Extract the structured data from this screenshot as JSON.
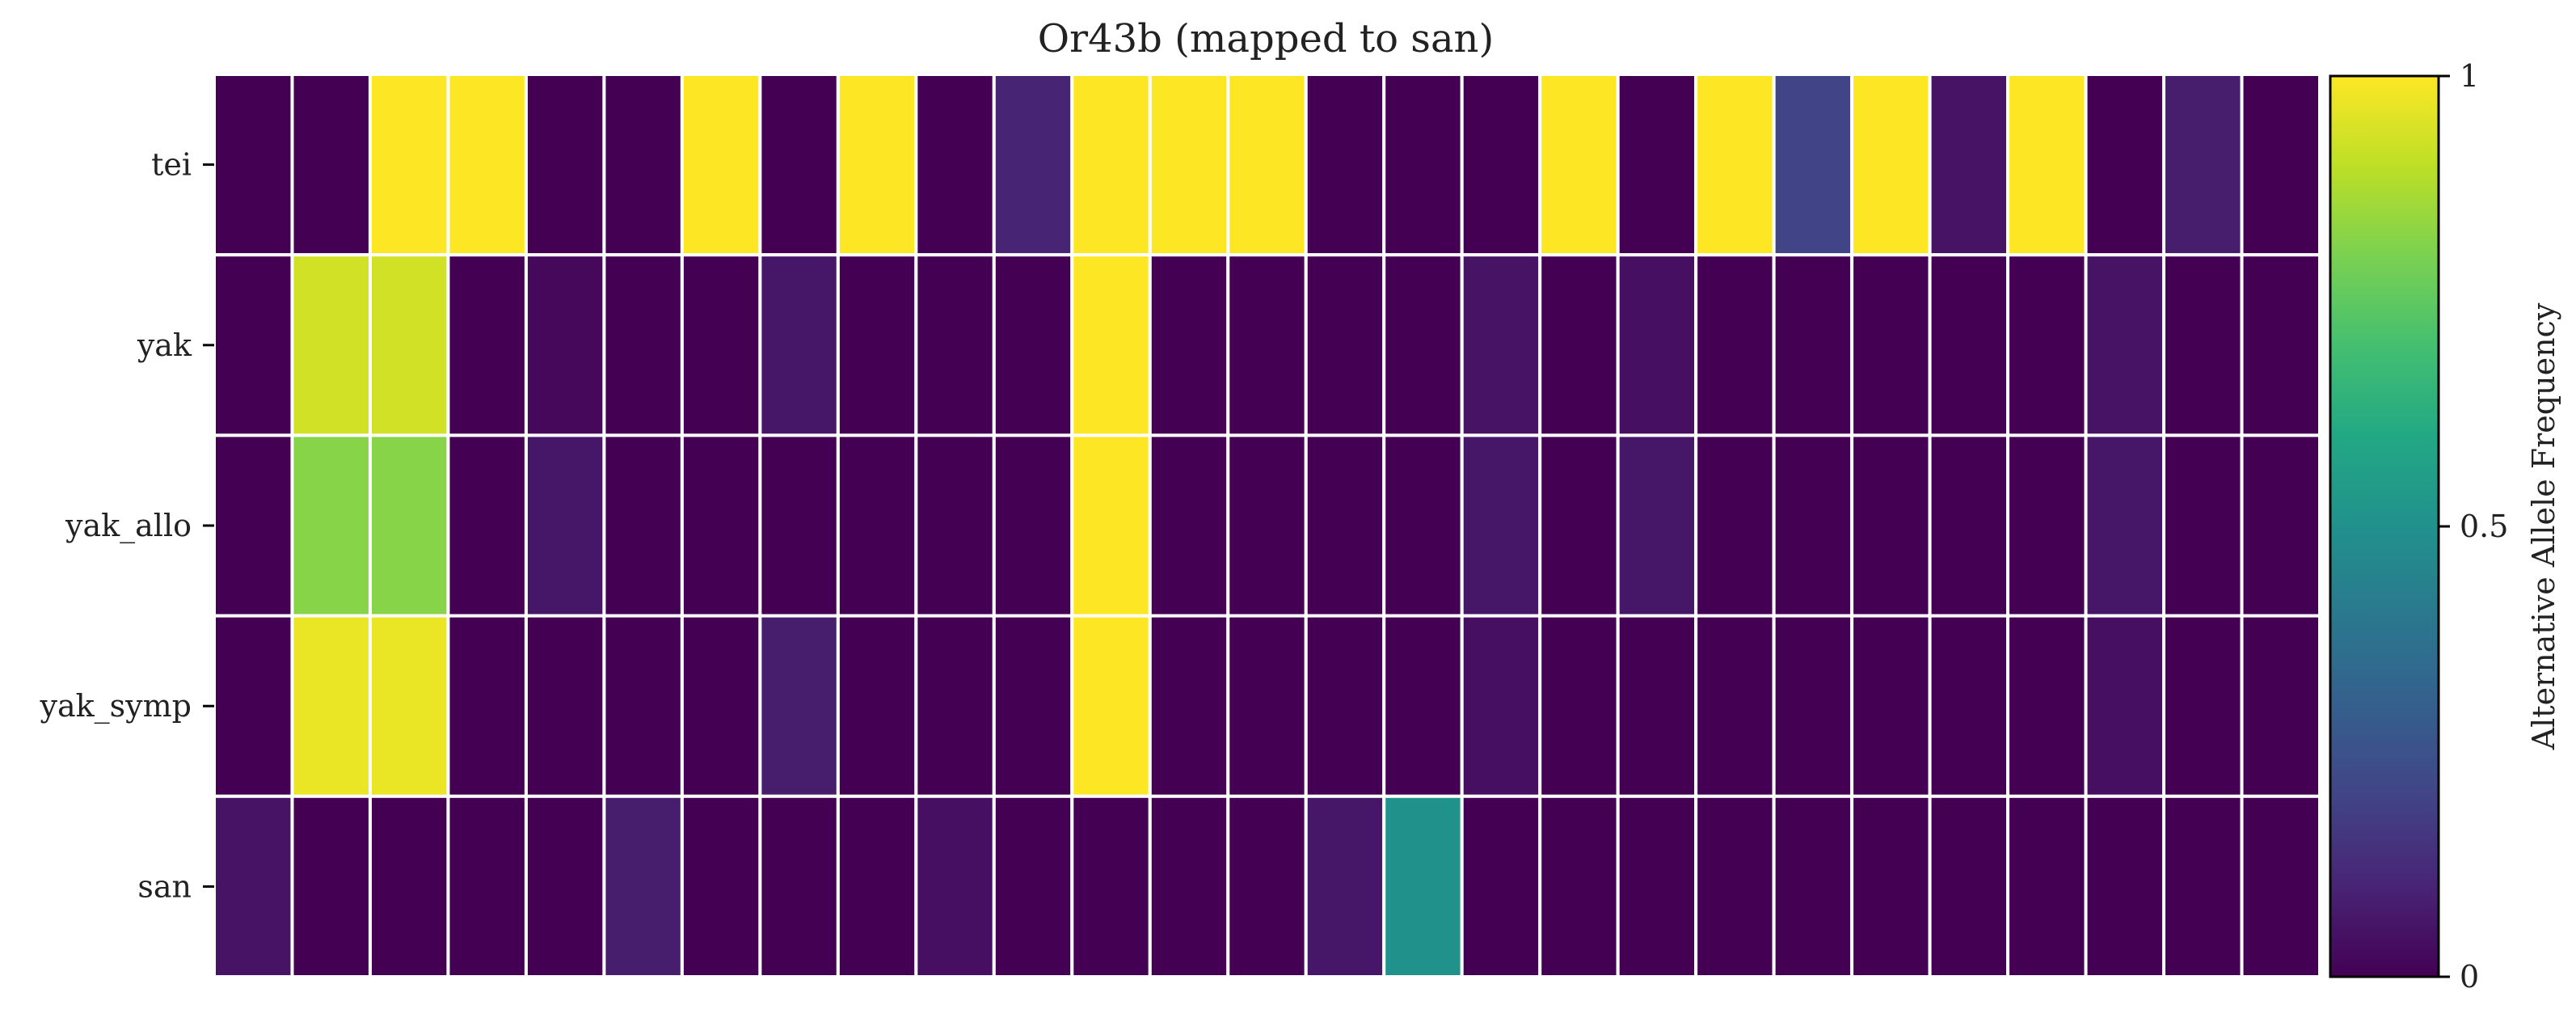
{
  "chart_data": {
    "type": "heatmap",
    "title": "Or43b (mapped to san)",
    "rows": [
      "tei",
      "yak",
      "yak_allo",
      "yak_symp",
      "san"
    ],
    "columns_count": 27,
    "values": [
      [
        0,
        0,
        1,
        1,
        0,
        0,
        1,
        0,
        1,
        0,
        0.1,
        1,
        1,
        1,
        0,
        0,
        0,
        1,
        0,
        1,
        0.2,
        1,
        0.05,
        1,
        0,
        0.08,
        0
      ],
      [
        0,
        0.93,
        0.93,
        0,
        0.02,
        0,
        0,
        0.06,
        0,
        0,
        0,
        1,
        0,
        0,
        0,
        0,
        0.05,
        0,
        0.04,
        0,
        0,
        0,
        0,
        0,
        0.05,
        0,
        0
      ],
      [
        0,
        0.82,
        0.82,
        0,
        0.06,
        0,
        0,
        0,
        0,
        0,
        0,
        1,
        0,
        0,
        0,
        0,
        0.06,
        0,
        0.06,
        0,
        0,
        0,
        0,
        0,
        0.06,
        0,
        0
      ],
      [
        0,
        0.97,
        0.97,
        0,
        0,
        0,
        0,
        0.08,
        0,
        0,
        0,
        1,
        0,
        0,
        0,
        0,
        0.04,
        0,
        0,
        0,
        0,
        0,
        0,
        0,
        0.04,
        0,
        0
      ],
      [
        0.05,
        0,
        0,
        0,
        0,
        0.08,
        0,
        0,
        0,
        0.04,
        0,
        0,
        0,
        0,
        0.06,
        0.5,
        0,
        0,
        0,
        0,
        0,
        0,
        0,
        0,
        0,
        0,
        0
      ]
    ],
    "colorbar": {
      "label": "Alternative Allele Frequency",
      "range": [
        0,
        1
      ],
      "ticks": [
        {
          "value": 0,
          "label": "0"
        },
        {
          "value": 0.5,
          "label": "0.5"
        },
        {
          "value": 1,
          "label": "1"
        }
      ],
      "colormap": "viridis"
    }
  }
}
